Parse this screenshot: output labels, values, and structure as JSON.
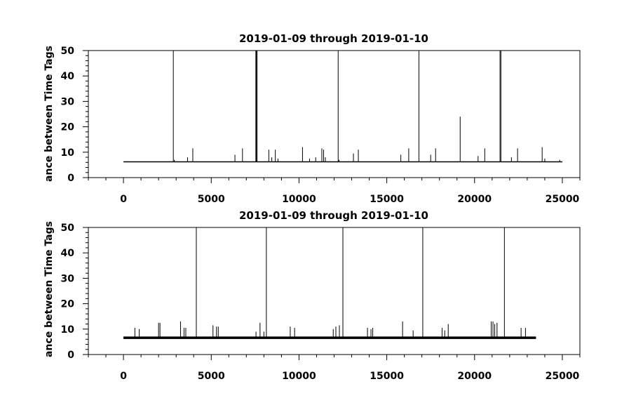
{
  "chart_data": [
    {
      "type": "line",
      "title": "2019-01-09 through 2019-01-10",
      "ylabel": "ance between Time Tags",
      "xlabel": "",
      "xlim": [
        -2000,
        26000
      ],
      "ylim": [
        0,
        50
      ],
      "xticks": [
        0,
        5000,
        10000,
        15000,
        20000,
        25000
      ],
      "xtick_labels": [
        "0",
        "5000",
        "10000",
        "15000",
        "20000",
        "25000"
      ],
      "yticks": [
        0,
        10,
        20,
        30,
        40,
        50
      ],
      "ytick_labels": [
        "0",
        "10",
        "20",
        "30",
        "40",
        "50"
      ],
      "series": [
        {
          "baseline": 6.2,
          "x_range": [
            0,
            25000
          ],
          "thickness": 1.5,
          "spikes": [
            {
              "x": 2840,
              "y": 50
            },
            {
              "x": 2900,
              "y": 7
            },
            {
              "x": 3650,
              "y": 8
            },
            {
              "x": 3950,
              "y": 11.5
            },
            {
              "x": 6350,
              "y": 9
            },
            {
              "x": 6780,
              "y": 11.5
            },
            {
              "x": 7540,
              "y": 50
            },
            {
              "x": 7580,
              "y": 50
            },
            {
              "x": 7610,
              "y": 50
            },
            {
              "x": 8280,
              "y": 11
            },
            {
              "x": 8450,
              "y": 8
            },
            {
              "x": 8650,
              "y": 11
            },
            {
              "x": 8800,
              "y": 7.5
            },
            {
              "x": 10200,
              "y": 12
            },
            {
              "x": 10600,
              "y": 7.5
            },
            {
              "x": 10950,
              "y": 8
            },
            {
              "x": 11300,
              "y": 11.5
            },
            {
              "x": 11400,
              "y": 11
            },
            {
              "x": 11500,
              "y": 8
            },
            {
              "x": 12230,
              "y": 50
            },
            {
              "x": 12280,
              "y": 7
            },
            {
              "x": 13100,
              "y": 9.5
            },
            {
              "x": 13380,
              "y": 11
            },
            {
              "x": 15800,
              "y": 9
            },
            {
              "x": 16250,
              "y": 11.5
            },
            {
              "x": 16830,
              "y": 50
            },
            {
              "x": 17500,
              "y": 9
            },
            {
              "x": 17780,
              "y": 11.5
            },
            {
              "x": 19180,
              "y": 24
            },
            {
              "x": 20200,
              "y": 8.5
            },
            {
              "x": 20580,
              "y": 11.5
            },
            {
              "x": 21450,
              "y": 50
            },
            {
              "x": 21500,
              "y": 50
            },
            {
              "x": 22100,
              "y": 8
            },
            {
              "x": 22450,
              "y": 11.5
            },
            {
              "x": 23850,
              "y": 12
            },
            {
              "x": 24000,
              "y": 7.5
            },
            {
              "x": 24850,
              "y": 7
            }
          ]
        }
      ]
    },
    {
      "type": "line",
      "title": "2019-01-09 through 2019-01-10",
      "ylabel": "ance between Time Tags",
      "xlabel": "",
      "xlim": [
        -2000,
        26000
      ],
      "ylim": [
        0,
        50
      ],
      "xticks": [
        0,
        5000,
        10000,
        15000,
        20000,
        25000
      ],
      "xtick_labels": [
        "0",
        "5000",
        "10000",
        "15000",
        "20000",
        "25000"
      ],
      "yticks": [
        0,
        10,
        20,
        30,
        40,
        50
      ],
      "ytick_labels": [
        "0",
        "10",
        "20",
        "30",
        "40",
        "50"
      ],
      "series": [
        {
          "baseline": 6.6,
          "x_range": [
            0,
            23500
          ],
          "thickness": 3.5,
          "spikes": [
            {
              "x": 650,
              "y": 10.5
            },
            {
              "x": 900,
              "y": 10
            },
            {
              "x": 2000,
              "y": 12.5
            },
            {
              "x": 2080,
              "y": 12.5
            },
            {
              "x": 3250,
              "y": 13
            },
            {
              "x": 3450,
              "y": 10.5
            },
            {
              "x": 3550,
              "y": 10.5
            },
            {
              "x": 4150,
              "y": 50
            },
            {
              "x": 5100,
              "y": 11.5
            },
            {
              "x": 5300,
              "y": 11
            },
            {
              "x": 5400,
              "y": 11
            },
            {
              "x": 7550,
              "y": 9
            },
            {
              "x": 7780,
              "y": 12.5
            },
            {
              "x": 8000,
              "y": 9
            },
            {
              "x": 8140,
              "y": 50
            },
            {
              "x": 9500,
              "y": 11
            },
            {
              "x": 9750,
              "y": 10.5
            },
            {
              "x": 11950,
              "y": 10
            },
            {
              "x": 12100,
              "y": 11
            },
            {
              "x": 12300,
              "y": 11.5
            },
            {
              "x": 12500,
              "y": 50
            },
            {
              "x": 13900,
              "y": 10.5
            },
            {
              "x": 14100,
              "y": 10
            },
            {
              "x": 14200,
              "y": 10.5
            },
            {
              "x": 15900,
              "y": 13
            },
            {
              "x": 16500,
              "y": 9.5
            },
            {
              "x": 17050,
              "y": 50
            },
            {
              "x": 18150,
              "y": 10.5
            },
            {
              "x": 18300,
              "y": 9.5
            },
            {
              "x": 18500,
              "y": 12
            },
            {
              "x": 20950,
              "y": 13
            },
            {
              "x": 21050,
              "y": 13
            },
            {
              "x": 21150,
              "y": 12
            },
            {
              "x": 21280,
              "y": 12.5
            },
            {
              "x": 21700,
              "y": 50
            },
            {
              "x": 22650,
              "y": 10.5
            },
            {
              "x": 22900,
              "y": 10.5
            }
          ]
        }
      ]
    }
  ]
}
